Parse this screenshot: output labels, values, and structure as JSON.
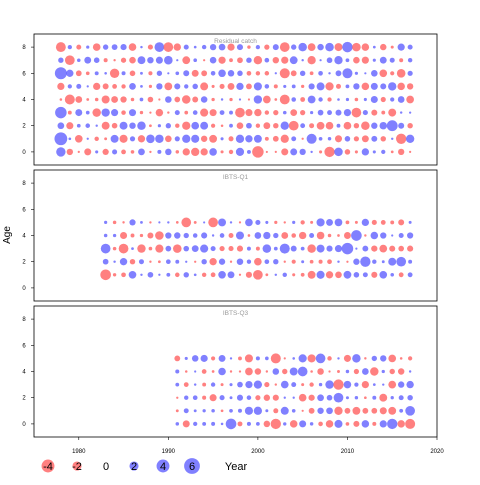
{
  "chart_data": {
    "type": "scatter",
    "subtype": "bubble",
    "ylabel": "Age",
    "xlabel": "Year",
    "xlim": [
      1975,
      2020
    ],
    "ylim": [
      -1,
      9
    ],
    "x_ticks": [
      "1980",
      "1990",
      "2000",
      "2010",
      "2020"
    ],
    "y_ticks": [
      "0",
      "2",
      "4",
      "6",
      "8"
    ],
    "colors": {
      "positive": "#5555ff",
      "negative": "#ff5555"
    },
    "legend": {
      "position": "bottom-left",
      "labels": [
        "-4",
        "-2",
        "0",
        "2",
        "4",
        "6"
      ],
      "values": [
        -4,
        -2,
        0,
        2,
        4,
        6
      ]
    },
    "panels": [
      {
        "title": "Residual catch",
        "years": [
          1978,
          2017
        ],
        "ages": [
          0,
          8
        ],
        "seed": 11,
        "highlights": [
          {
            "x": 1978,
            "y": 6,
            "v": 4.6
          },
          {
            "x": 1978,
            "y": 3,
            "v": 4.2
          },
          {
            "x": 1978,
            "y": 1,
            "v": 5.2
          },
          {
            "x": 1978,
            "y": 8,
            "v": -3.1
          },
          {
            "x": 1978,
            "y": 0,
            "v": 2.8
          },
          {
            "x": 1979,
            "y": 7,
            "v": -3.0
          },
          {
            "x": 1979,
            "y": 4,
            "v": -3.2
          },
          {
            "x": 1984,
            "y": 6,
            "v": -2.8
          },
          {
            "x": 1989,
            "y": 8,
            "v": 3.0
          },
          {
            "x": 1990,
            "y": 8,
            "v": -3.0
          },
          {
            "x": 1998,
            "y": 3,
            "v": -3.0
          },
          {
            "x": 2000,
            "y": 0,
            "v": -4.2
          },
          {
            "x": 2003,
            "y": 8,
            "v": -3.0
          },
          {
            "x": 2003,
            "y": 6,
            "v": -3.2
          },
          {
            "x": 2003,
            "y": 4,
            "v": -3.1
          },
          {
            "x": 2004,
            "y": 2,
            "v": -3.0
          },
          {
            "x": 2006,
            "y": 1,
            "v": 3.2
          },
          {
            "x": 2008,
            "y": 0,
            "v": -3.4
          },
          {
            "x": 2010,
            "y": 8,
            "v": 3.5
          },
          {
            "x": 2010,
            "y": 6,
            "v": 3.2
          },
          {
            "x": 2011,
            "y": 3,
            "v": -3.0
          },
          {
            "x": 2015,
            "y": 2,
            "v": 3.8
          },
          {
            "x": 2016,
            "y": 1,
            "v": -3.4
          }
        ]
      },
      {
        "title": "IBTS-Q1",
        "years": [
          1983,
          2017
        ],
        "ages": [
          1,
          5
        ],
        "seed": 23,
        "highlights": [
          {
            "x": 1983,
            "y": 1,
            "v": -3.6
          },
          {
            "x": 1983,
            "y": 3,
            "v": 3.0
          },
          {
            "x": 1985,
            "y": 3,
            "v": -3.0
          },
          {
            "x": 1992,
            "y": 5,
            "v": -3.0
          },
          {
            "x": 1995,
            "y": 5,
            "v": -3.0
          },
          {
            "x": 2000,
            "y": 1,
            "v": -3.0
          },
          {
            "x": 2003,
            "y": 3,
            "v": 3.2
          },
          {
            "x": 2010,
            "y": 3,
            "v": 4.2
          },
          {
            "x": 2011,
            "y": 4,
            "v": 3.6
          },
          {
            "x": 2012,
            "y": 2,
            "v": 3.4
          },
          {
            "x": 2016,
            "y": 2,
            "v": 3.0
          }
        ]
      },
      {
        "title": "IBTS-Q3",
        "years": [
          1991,
          2017
        ],
        "ages": [
          0,
          5
        ],
        "seed": 37,
        "highlights": [
          {
            "x": 1997,
            "y": 0,
            "v": 3.6
          },
          {
            "x": 2002,
            "y": 5,
            "v": -3.2
          },
          {
            "x": 2002,
            "y": 0,
            "v": -3.4
          },
          {
            "x": 2005,
            "y": 4,
            "v": 3.0
          },
          {
            "x": 2007,
            "y": 5,
            "v": 3.0
          },
          {
            "x": 2009,
            "y": 3,
            "v": -3.4
          },
          {
            "x": 2009,
            "y": 2,
            "v": 3.0
          },
          {
            "x": 2015,
            "y": 0,
            "v": 3.4
          },
          {
            "x": 2017,
            "y": 1,
            "v": 3.0
          },
          {
            "x": 2017,
            "y": 0,
            "v": -3.2
          }
        ]
      }
    ]
  }
}
